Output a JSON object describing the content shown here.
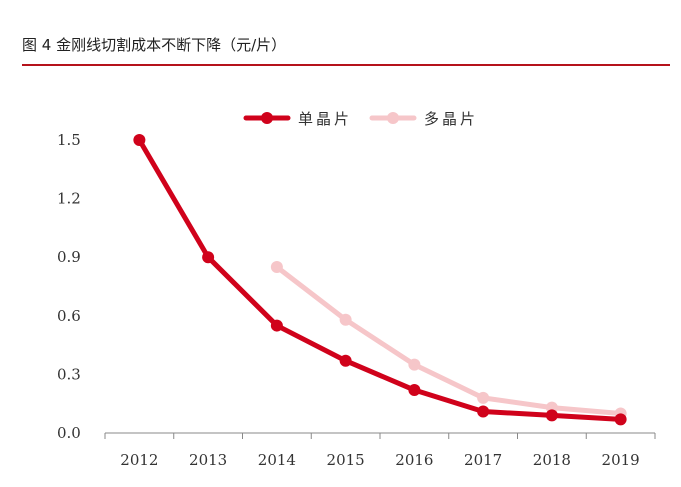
{
  "figure": {
    "title": "图 4 金刚线切割成本不断下降（元/片）",
    "rule_color": "#b5121b"
  },
  "chart_data": {
    "type": "line",
    "categories": [
      "2012",
      "2013",
      "2014",
      "2015",
      "2016",
      "2017",
      "2018",
      "2019"
    ],
    "series": [
      {
        "name": "单晶片",
        "color": "#d0021b",
        "values": [
          1.5,
          0.9,
          0.55,
          0.37,
          0.22,
          0.11,
          0.09,
          0.07
        ]
      },
      {
        "name": "多晶片",
        "color": "#f6c6c9",
        "values": [
          null,
          null,
          0.85,
          0.58,
          0.35,
          0.18,
          0.13,
          0.1
        ]
      }
    ],
    "yticks": [
      "0.0",
      "0.3",
      "0.6",
      "0.9",
      "1.2",
      "1.5"
    ],
    "ylim": [
      0,
      1.5
    ],
    "grid": false,
    "legend_position": "top-center"
  }
}
